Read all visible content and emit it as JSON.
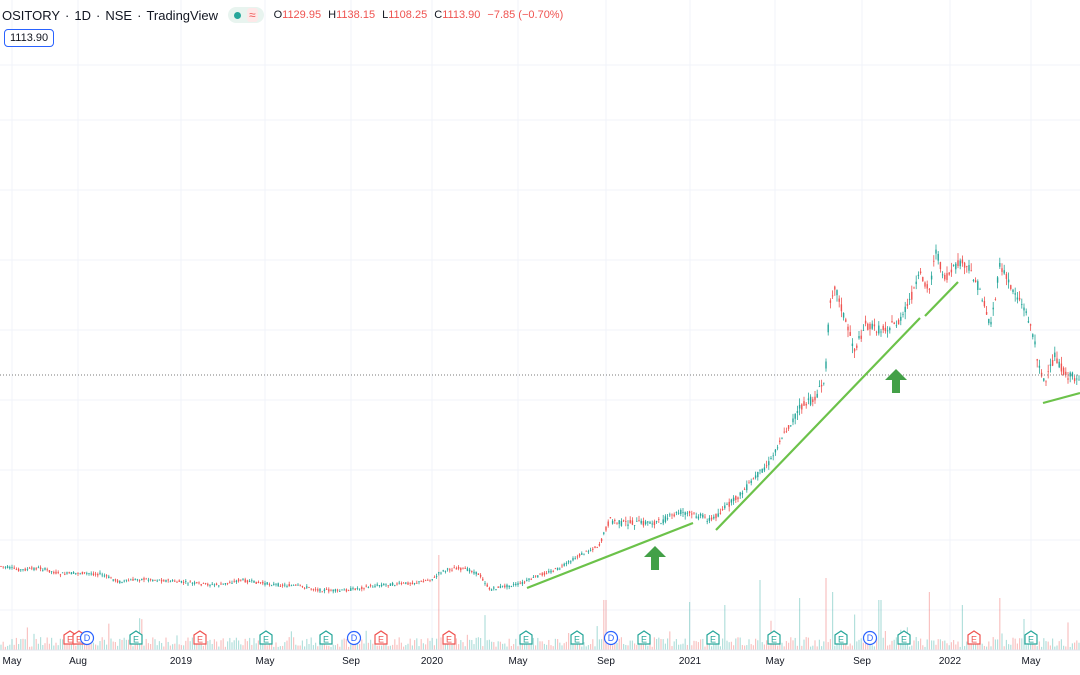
{
  "header": {
    "symbol": "OSITORY",
    "interval": "1D",
    "exchange": "NSE",
    "source": "TradingView",
    "wave_icon": "≈",
    "ohlc": {
      "open_label": "O",
      "open": "1129.95",
      "high_label": "H",
      "high": "1138.15",
      "low_label": "L",
      "low": "1108.25",
      "close_label": "C",
      "close": "1113.90",
      "change": "−7.85 (−0.70%)"
    },
    "live_color": "#26a69a",
    "down_color": "#ef5350"
  },
  "price_badge": "1113.90",
  "chart_data": {
    "type": "line",
    "x_tick_labels": [
      "May",
      "Aug",
      "2019",
      "May",
      "Sep",
      "2020",
      "May",
      "Sep",
      "2021",
      "May",
      "Sep",
      "2022",
      "May"
    ],
    "last_price": 1113.9,
    "price_scale": "linear",
    "series": [
      {
        "values": [
          [
            0,
            566
          ],
          [
            20,
            570
          ],
          [
            40,
            568
          ],
          [
            60,
            574
          ],
          [
            80,
            573
          ],
          [
            100,
            574
          ],
          [
            120,
            582
          ],
          [
            140,
            579
          ],
          [
            160,
            580
          ],
          [
            180,
            582
          ],
          [
            200,
            584
          ],
          [
            220,
            585
          ],
          [
            240,
            580
          ],
          [
            260,
            583
          ],
          [
            280,
            585
          ],
          [
            300,
            586
          ],
          [
            320,
            590
          ],
          [
            340,
            591
          ],
          [
            360,
            588
          ],
          [
            380,
            585
          ],
          [
            400,
            584
          ],
          [
            420,
            582
          ],
          [
            435,
            578
          ],
          [
            440,
            572
          ],
          [
            455,
            568
          ],
          [
            470,
            570
          ],
          [
            480,
            575
          ],
          [
            490,
            590
          ],
          [
            500,
            587
          ],
          [
            520,
            584
          ],
          [
            540,
            575
          ],
          [
            560,
            568
          ],
          [
            580,
            555
          ],
          [
            600,
            545
          ],
          [
            605,
            530
          ],
          [
            610,
            520
          ],
          [
            620,
            523
          ],
          [
            640,
            523
          ],
          [
            660,
            522
          ],
          [
            680,
            512
          ],
          [
            700,
            516
          ],
          [
            712,
            520
          ],
          [
            720,
            512
          ],
          [
            740,
            495
          ],
          [
            760,
            472
          ],
          [
            770,
            462
          ],
          [
            780,
            440
          ],
          [
            790,
            425
          ],
          [
            800,
            408
          ],
          [
            815,
            398
          ],
          [
            825,
            380
          ],
          [
            830,
            300
          ],
          [
            835,
            285
          ],
          [
            845,
            320
          ],
          [
            855,
            350
          ],
          [
            865,
            325
          ],
          [
            880,
            330
          ],
          [
            900,
            322
          ],
          [
            910,
            300
          ],
          [
            920,
            275
          ],
          [
            930,
            290
          ],
          [
            935,
            248
          ],
          [
            945,
            280
          ],
          [
            955,
            268
          ],
          [
            960,
            262
          ],
          [
            970,
            270
          ],
          [
            980,
            290
          ],
          [
            990,
            325
          ],
          [
            995,
            300
          ],
          [
            1000,
            265
          ],
          [
            1010,
            285
          ],
          [
            1020,
            300
          ],
          [
            1030,
            322
          ],
          [
            1038,
            360
          ],
          [
            1045,
            385
          ],
          [
            1055,
            355
          ],
          [
            1065,
            375
          ],
          [
            1080,
            378
          ]
        ]
      }
    ],
    "events": [
      {
        "label": "E",
        "kind": "earnings-down",
        "x": 70
      },
      {
        "label": "E",
        "kind": "earnings-down",
        "x": 79
      },
      {
        "label": "D",
        "kind": "dividend",
        "x": 87
      },
      {
        "label": "E",
        "kind": "earnings-up",
        "x": 136
      },
      {
        "label": "E",
        "kind": "earnings-down",
        "x": 200
      },
      {
        "label": "E",
        "kind": "earnings-up",
        "x": 266
      },
      {
        "label": "E",
        "kind": "earnings-up",
        "x": 326
      },
      {
        "label": "D",
        "kind": "dividend",
        "x": 354
      },
      {
        "label": "E",
        "kind": "earnings-down",
        "x": 381
      },
      {
        "label": "E",
        "kind": "earnings-down",
        "x": 449
      },
      {
        "label": "E",
        "kind": "earnings-up",
        "x": 526
      },
      {
        "label": "E",
        "kind": "earnings-up",
        "x": 577
      },
      {
        "label": "D",
        "kind": "dividend",
        "x": 611
      },
      {
        "label": "E",
        "kind": "earnings-up",
        "x": 644
      },
      {
        "label": "E",
        "kind": "earnings-up",
        "x": 713
      },
      {
        "label": "E",
        "kind": "earnings-up",
        "x": 774
      },
      {
        "label": "E",
        "kind": "earnings-up",
        "x": 841
      },
      {
        "label": "D",
        "kind": "dividend",
        "x": 870
      },
      {
        "label": "E",
        "kind": "earnings-up",
        "x": 904
      },
      {
        "label": "E",
        "kind": "earnings-down",
        "x": 974
      },
      {
        "label": "E",
        "kind": "earnings-up",
        "x": 1031
      }
    ],
    "colors": {
      "up": "#26a69a",
      "down": "#ef5350",
      "trendline": "#6cc24a",
      "arrow": "#43a047",
      "dividend": "#2962ff"
    }
  }
}
